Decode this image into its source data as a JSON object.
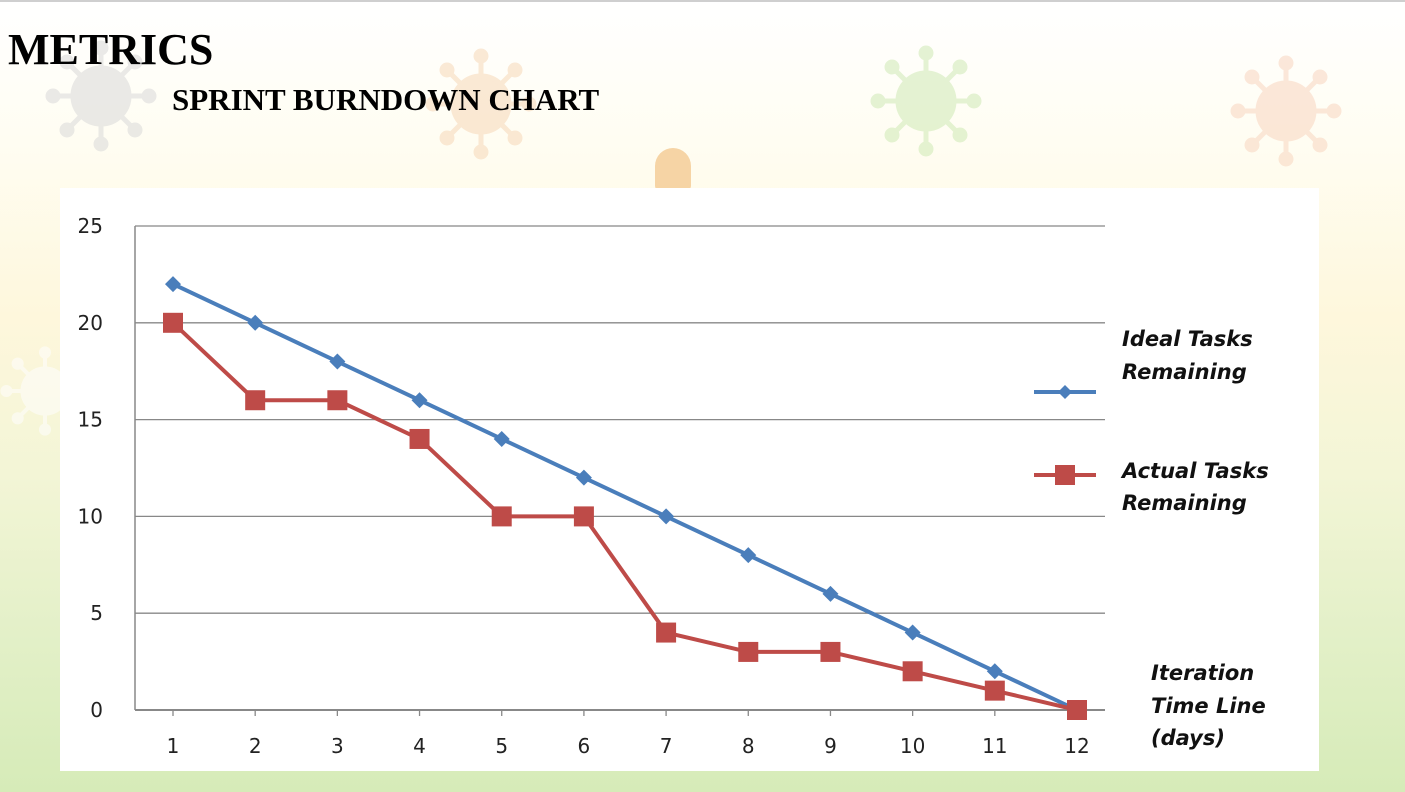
{
  "header": {
    "title": "METRICS",
    "subtitle": "SPRINT BURNDOWN CHART"
  },
  "colors": {
    "ideal": "#4a7ebb",
    "actual": "#be4b48",
    "grid": "#888888"
  },
  "chart_data": {
    "type": "line",
    "title": "",
    "x": [
      1,
      2,
      3,
      4,
      5,
      6,
      7,
      8,
      9,
      10,
      11,
      12
    ],
    "series": [
      {
        "name": "Ideal Tasks Remaining",
        "marker": "diamond",
        "values": [
          22,
          20,
          18,
          16,
          14,
          12,
          10,
          8,
          6,
          4,
          2,
          0
        ]
      },
      {
        "name": "Actual Tasks Remaining",
        "marker": "square",
        "values": [
          20,
          16,
          16,
          14,
          10,
          10,
          4,
          3,
          3,
          2,
          1,
          0
        ]
      }
    ],
    "yticks": [
      "0",
      "5",
      "10",
      "15",
      "20",
      "25"
    ],
    "xticks": [
      "1",
      "2",
      "3",
      "4",
      "5",
      "6",
      "7",
      "8",
      "9",
      "10",
      "11",
      "12"
    ],
    "ylim": [
      0,
      25
    ],
    "legend": [
      {
        "line1": "Ideal Tasks",
        "line2": "Remaining"
      },
      {
        "line1": "Actual Tasks",
        "line2": "Remaining"
      }
    ],
    "xlabel": {
      "line1": "Iteration",
      "line2": "Time Line",
      "line3": "(days)"
    },
    "ylabel": "",
    "grid": true,
    "legend_position": "right"
  }
}
